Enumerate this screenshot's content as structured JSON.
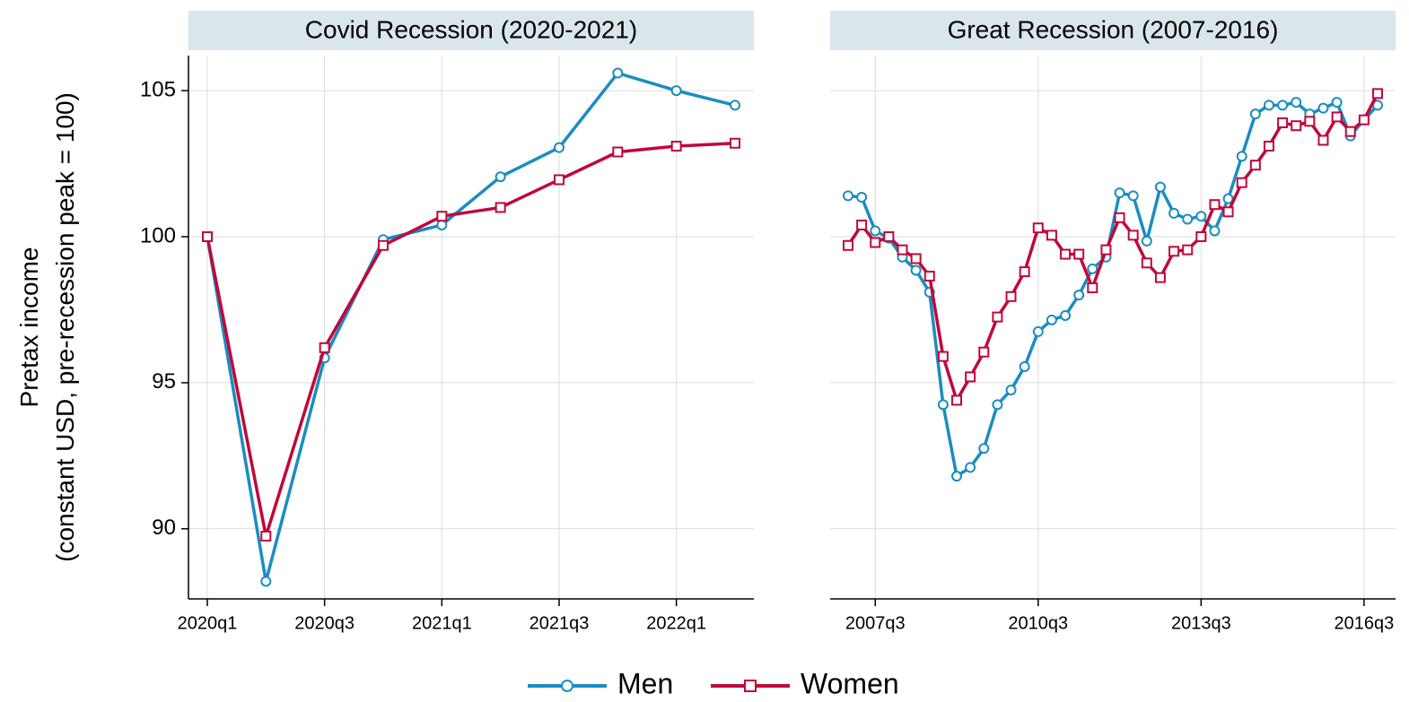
{
  "chart_data": [
    {
      "type": "line",
      "title": "Covid Recession (2020-2021)",
      "ylabel": [
        "Pretax income",
        "(constant USD, pre-recession peak = 100)"
      ],
      "categories": [
        "2020q1",
        null,
        "2020q3",
        null,
        "2021q1",
        null,
        "2021q3",
        null,
        "2022q1",
        null
      ],
      "series": [
        {
          "name": "Men",
          "color": "#1a8dc0",
          "marker": "circle",
          "values": [
            100,
            88.2,
            95.85,
            99.9,
            100.4,
            102.05,
            103.05,
            105.6,
            105.0,
            104.5
          ]
        },
        {
          "name": "Women",
          "color": "#c0083a",
          "marker": "square",
          "values": [
            100,
            89.75,
            96.2,
            99.7,
            100.7,
            101.0,
            101.95,
            102.9,
            103.1,
            103.2
          ]
        }
      ],
      "ylim": [
        87.6,
        106.2
      ],
      "yticks": [
        90,
        95,
        100,
        105
      ],
      "show_ytick_labels": true,
      "grid": true,
      "legend": "bottom"
    },
    {
      "type": "line",
      "title": "Great Recession (2007-2016)",
      "categories": [
        null,
        null,
        "2007q3",
        null,
        null,
        null,
        null,
        null,
        null,
        null,
        null,
        null,
        null,
        null,
        "2010q3",
        null,
        null,
        null,
        null,
        null,
        null,
        null,
        null,
        null,
        null,
        null,
        "2013q3",
        null,
        null,
        null,
        null,
        null,
        null,
        null,
        null,
        null,
        null,
        null,
        "2016q3",
        null
      ],
      "series": [
        {
          "name": "Men",
          "color": "#1a8dc0",
          "marker": "circle",
          "values": [
            101.4,
            101.35,
            100.2,
            99.95,
            99.3,
            98.85,
            98.1,
            94.25,
            91.8,
            92.1,
            92.75,
            94.25,
            94.75,
            95.55,
            96.75,
            97.15,
            97.3,
            98.0,
            98.9,
            99.3,
            101.5,
            101.4,
            99.85,
            101.7,
            100.8,
            100.6,
            100.7,
            100.2,
            101.3,
            102.75,
            104.2,
            104.5,
            104.5,
            104.6,
            104.2,
            104.4,
            104.6,
            103.45,
            104.0,
            104.5
          ]
        },
        {
          "name": "Women",
          "color": "#c0083a",
          "marker": "square",
          "values": [
            99.7,
            100.4,
            99.8,
            100.0,
            99.55,
            99.25,
            98.65,
            95.9,
            94.4,
            95.2,
            96.05,
            97.25,
            97.95,
            98.8,
            100.3,
            100.05,
            99.4,
            99.4,
            98.25,
            99.55,
            100.65,
            100.05,
            99.1,
            98.6,
            99.5,
            99.55,
            100.0,
            101.1,
            100.85,
            101.85,
            102.45,
            103.1,
            103.9,
            103.8,
            103.95,
            103.3,
            104.1,
            103.6,
            104.0,
            104.9
          ]
        }
      ],
      "ylim": [
        87.6,
        106.2
      ],
      "yticks": [
        90,
        95,
        100,
        105
      ],
      "show_ytick_labels": false,
      "grid": true
    }
  ]
}
